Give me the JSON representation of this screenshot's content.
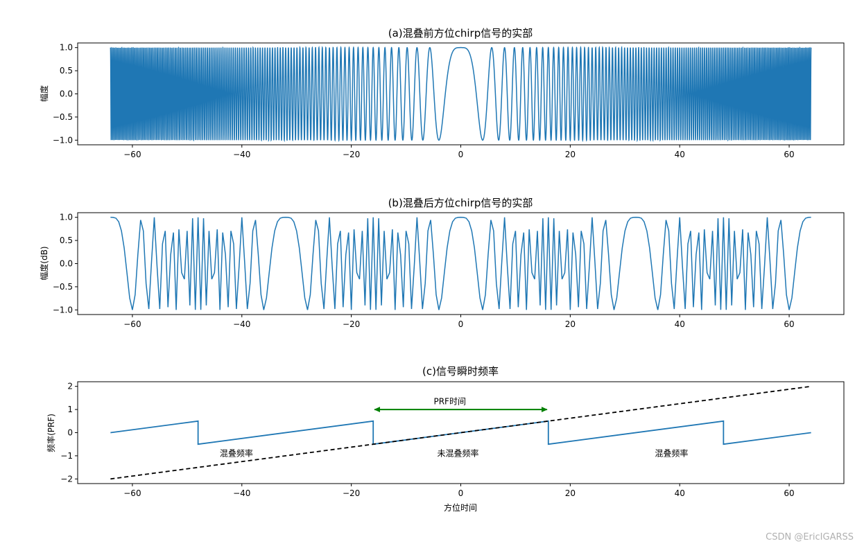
{
  "watermark": "CSDN @EricIGARSS",
  "chart_data": [
    {
      "type": "line",
      "title": "(a)混叠前方位chirp信号的实部",
      "ylabel": "幅度",
      "xlabel": "",
      "xlim": [
        -70,
        70
      ],
      "ylim": [
        -1.1,
        1.1
      ],
      "xticks": [
        -60,
        -40,
        -20,
        0,
        20,
        40,
        60
      ],
      "yticks": [
        -1.0,
        -0.5,
        0.0,
        0.5,
        1.0
      ],
      "series": [
        {
          "function": "cos(pi*Ka*t^2)",
          "Ka": 0.0625,
          "t_range": [
            -64,
            64
          ],
          "color": "#1f77b4"
        }
      ]
    },
    {
      "type": "line",
      "title": "(b)混叠后方位chirp信号的实部",
      "ylabel": "幅度(dB)",
      "xlabel": "",
      "xlim": [
        -70,
        70
      ],
      "ylim": [
        -1.1,
        1.1
      ],
      "xticks": [
        -60,
        -40,
        -20,
        0,
        20,
        40,
        60
      ],
      "yticks": [
        -1.0,
        -0.5,
        0.0,
        0.5,
        1.0
      ],
      "series": [
        {
          "function": "cos(pi*Ka*t^2) sampled at PRF",
          "Ka": 0.0625,
          "PRF": 2,
          "aliasing_period": 32,
          "t_range": [
            -64,
            64
          ],
          "color": "#1f77b4"
        }
      ]
    },
    {
      "type": "line",
      "title": "(c)信号瞬时频率",
      "ylabel": "频率(PRF)",
      "xlabel": "方位时间",
      "xlim": [
        -70,
        70
      ],
      "ylim": [
        -2.2,
        2.2
      ],
      "xticks": [
        -60,
        -40,
        -20,
        0,
        20,
        40,
        60
      ],
      "yticks": [
        -2,
        -1,
        0,
        1,
        2
      ],
      "series": [
        {
          "style": "solid",
          "color": "#1f77b4",
          "x": [
            -64,
            -48,
            -48,
            -16,
            -16,
            16,
            16,
            48,
            48,
            64
          ],
          "y": [
            0,
            0.5,
            -0.5,
            0.5,
            -0.5,
            0.5,
            -0.5,
            0.5,
            -0.5,
            0
          ]
        },
        {
          "style": "dashed",
          "color": "#000000",
          "x": [
            -64,
            64
          ],
          "y": [
            -2,
            2
          ]
        }
      ],
      "arrow": {
        "x": [
          -16,
          16
        ],
        "y": 1,
        "color": "#008000"
      },
      "annotations": [
        {
          "text": "PRF时间",
          "x": -2,
          "y": 1.35
        },
        {
          "text": "混叠频率",
          "x": -41,
          "y": -0.9
        },
        {
          "text": "未混叠频率",
          "x": -0.5,
          "y": -0.9
        },
        {
          "text": "混叠频率",
          "x": 38.5,
          "y": -0.9
        }
      ]
    }
  ]
}
